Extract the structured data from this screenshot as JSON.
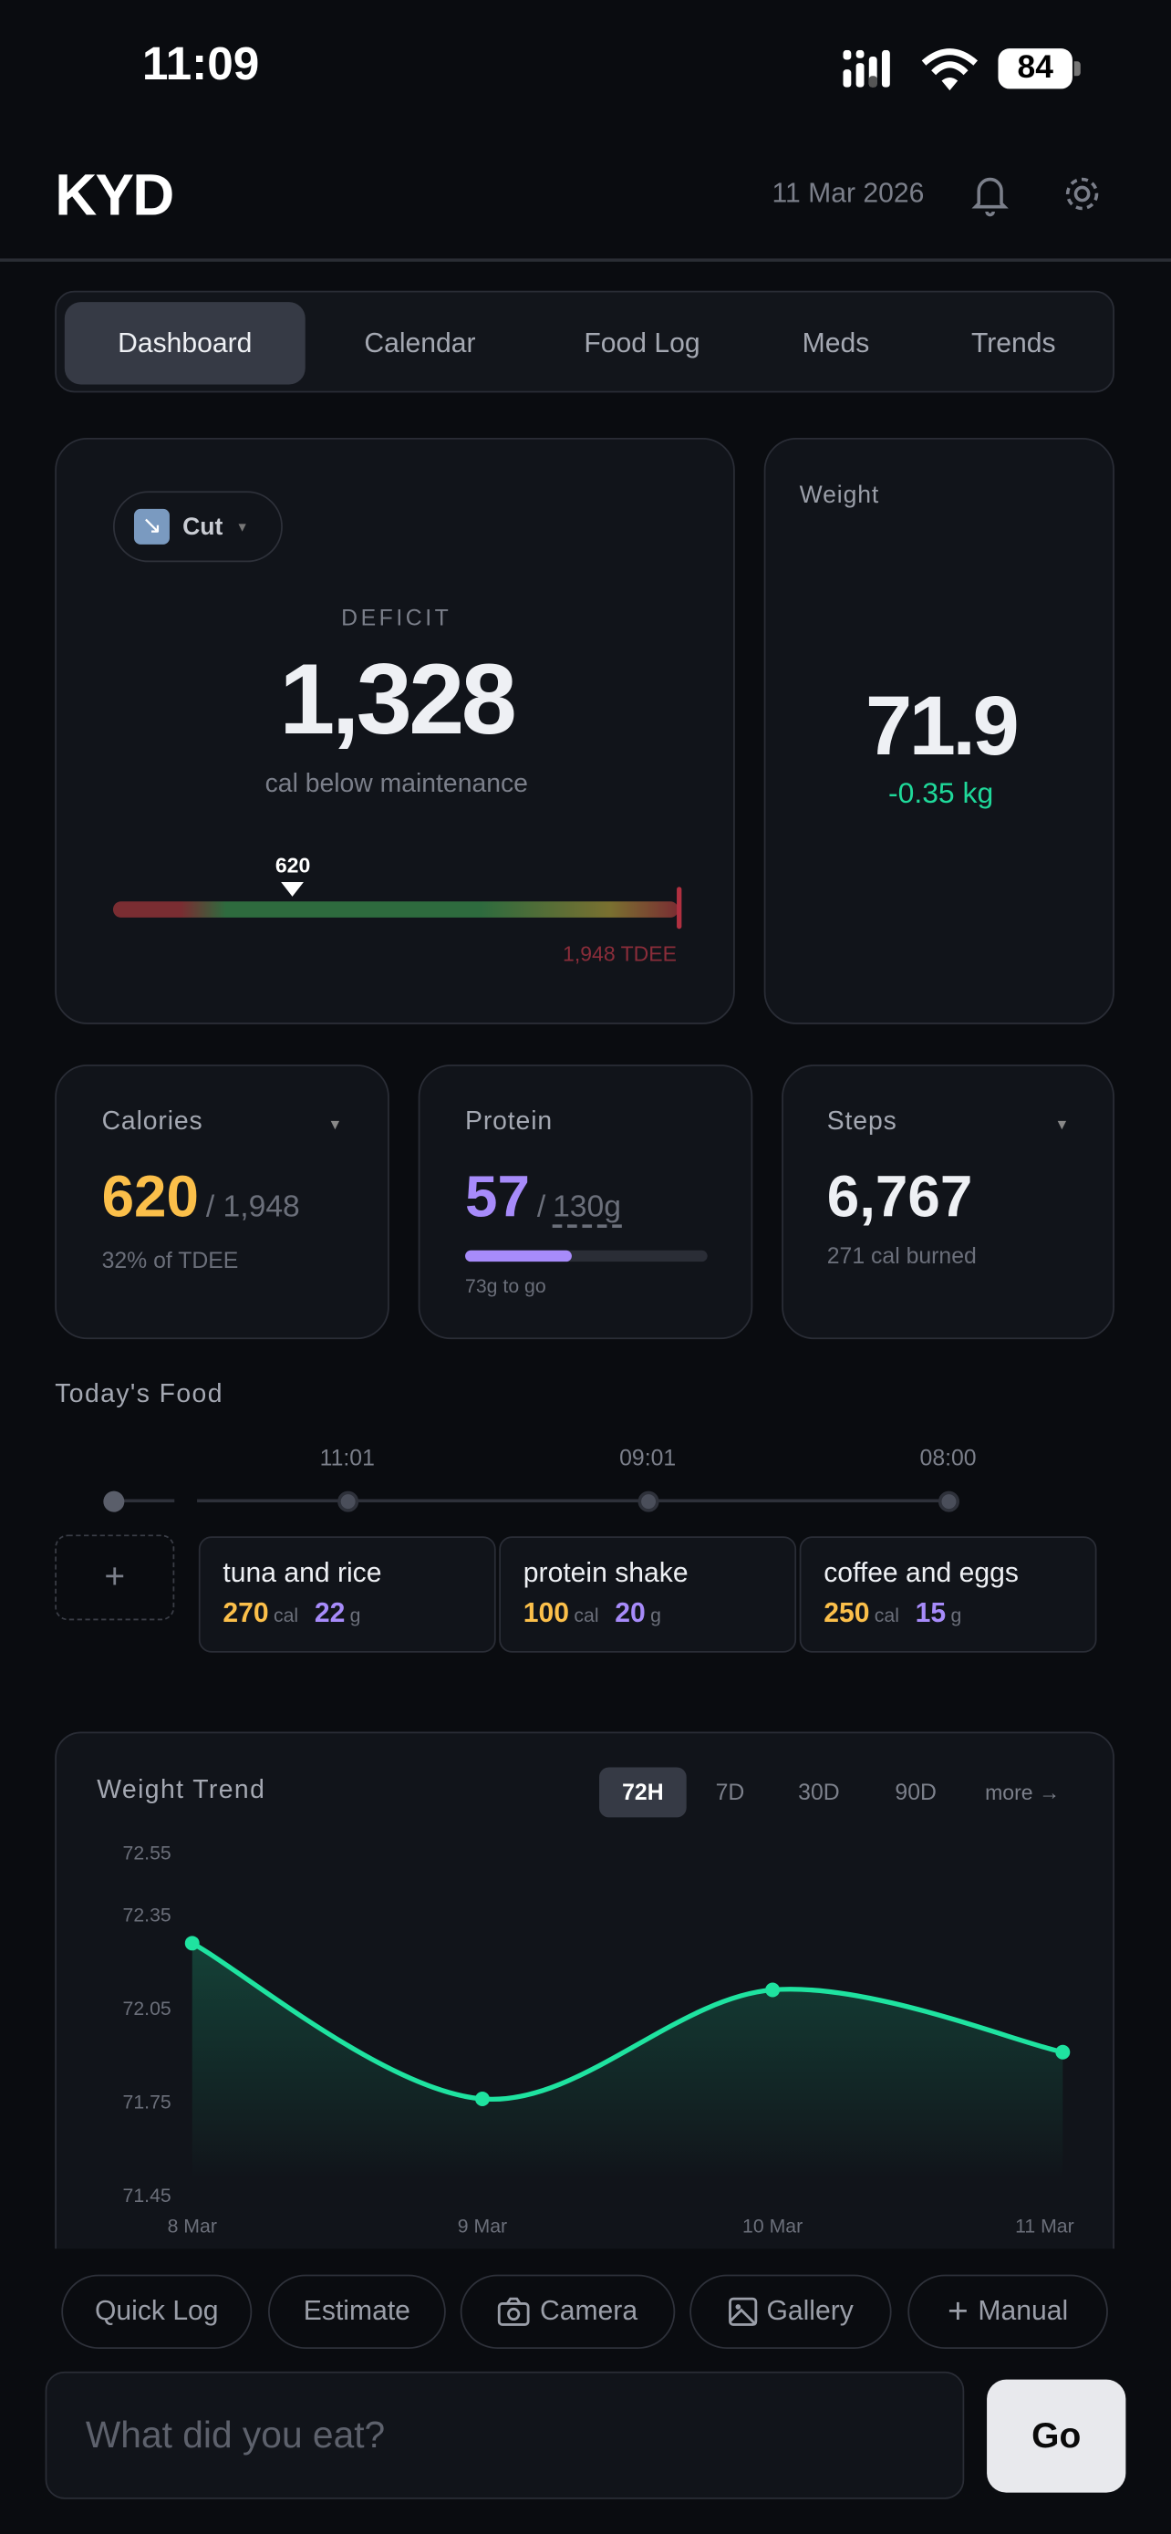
{
  "status_bar": {
    "time": "11:09",
    "battery": "84"
  },
  "header": {
    "logo": "KYD",
    "date": "11 Mar 2026",
    "icons": [
      "bell-icon",
      "gear-icon"
    ]
  },
  "tabs": [
    {
      "label": "Dashboard",
      "active": true
    },
    {
      "label": "Calendar"
    },
    {
      "label": "Food Log"
    },
    {
      "label": "Meds"
    },
    {
      "label": "Trends"
    }
  ],
  "deficit_card": {
    "mode": "Cut",
    "label": "DEFICIT",
    "value": "1,328",
    "caption": "cal below maintenance",
    "marker": "620",
    "tdee_label": "1,948 TDEE",
    "progress_fraction": 0.318
  },
  "weight_card": {
    "label": "Weight",
    "value": "71.9",
    "change": "-0.35 kg"
  },
  "stats": {
    "calories": {
      "label": "Calories",
      "value": "620",
      "total": "/ 1,948",
      "sub": "32% of TDEE"
    },
    "protein": {
      "label": "Protein",
      "value": "57",
      "total": "130g",
      "sub": "73g to go",
      "progress_fraction": 0.44
    },
    "steps": {
      "label": "Steps",
      "value": "6,767",
      "sub": "271 cal burned"
    }
  },
  "todays_food": {
    "title": "Today's Food",
    "items": [
      {
        "time": "11:01",
        "name": "tuna and rice",
        "cal": "270",
        "cal_unit": "cal",
        "protein": "22",
        "protein_unit": "g"
      },
      {
        "time": "09:01",
        "name": "protein shake",
        "cal": "100",
        "cal_unit": "cal",
        "protein": "20",
        "protein_unit": "g"
      },
      {
        "time": "08:00",
        "name": "coffee and eggs",
        "cal": "250",
        "cal_unit": "cal",
        "protein": "15",
        "protein_unit": "g"
      }
    ],
    "add_label": "+"
  },
  "weight_trend": {
    "title": "Weight Trend",
    "ranges": [
      "72H",
      "7D",
      "30D",
      "90D"
    ],
    "active_range": "72H",
    "more": "more →"
  },
  "chart_data": {
    "type": "area",
    "x": [
      "8 Mar",
      "9 Mar",
      "10 Mar",
      "11 Mar"
    ],
    "values": [
      72.26,
      71.76,
      72.11,
      71.91
    ],
    "yticks": [
      "72.55",
      "72.35",
      "72.05",
      "71.75",
      "71.45"
    ],
    "ylim": [
      71.45,
      72.55
    ],
    "grid": false,
    "color": "#1fe3a0"
  },
  "actions": [
    {
      "label": "Quick Log",
      "icon": ""
    },
    {
      "label": "Estimate",
      "icon": ""
    },
    {
      "label": "Camera",
      "icon": "camera-icon"
    },
    {
      "label": "Gallery",
      "icon": "image-icon"
    },
    {
      "label": "Manual",
      "icon": "plus-icon"
    }
  ],
  "input": {
    "placeholder": "What did you eat?",
    "go": "Go"
  },
  "colors": {
    "accent_green": "#1fd99a",
    "calories": "#fbbf4a",
    "protein": "#a78bfa",
    "tdee_red": "#8a2d3a"
  }
}
